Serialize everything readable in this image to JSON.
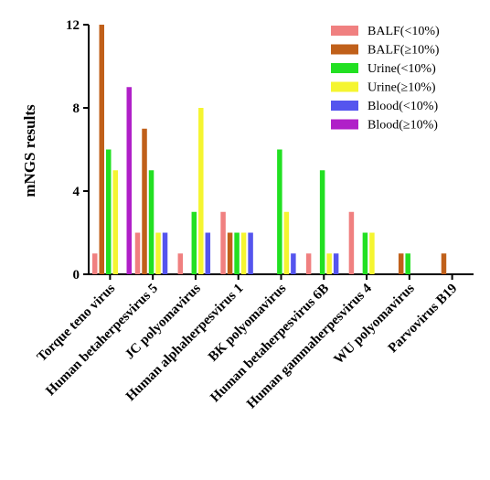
{
  "chart_data": {
    "type": "bar",
    "title": "",
    "xlabel": "",
    "ylabel": "mNGS results",
    "ylim": [
      0,
      12
    ],
    "yticks": [
      0,
      4,
      8,
      12
    ],
    "grid": false,
    "legend_position": "top-right",
    "categories": [
      "Torque teno virus",
      "Human betaherpesvirus 5",
      "JC polyomavirus",
      "Human alphaherpesvirus 1",
      "BK polyomavirus",
      "Human betaherpesvirus 6B",
      "Human gammaherpesvirus 4",
      "WU polyomavirus",
      "Parvovirus B19"
    ],
    "series": [
      {
        "name": "BALF(<10%)",
        "color": "#f08080",
        "values": [
          1,
          2,
          1,
          3,
          0,
          1,
          3,
          0,
          0
        ]
      },
      {
        "name": "BALF(≥10%)",
        "color": "#c0601a",
        "values": [
          12,
          7,
          0,
          2,
          0,
          0,
          0,
          1,
          1
        ]
      },
      {
        "name": "Urine(<10%)",
        "color": "#22e022",
        "values": [
          6,
          5,
          3,
          2,
          6,
          5,
          2,
          1,
          0
        ]
      },
      {
        "name": "Urine(≥10%)",
        "color": "#f5f530",
        "values": [
          5,
          2,
          8,
          2,
          3,
          1,
          2,
          0,
          0
        ]
      },
      {
        "name": "Blood(<10%)",
        "color": "#5555ee",
        "values": [
          0,
          2,
          2,
          2,
          1,
          1,
          0,
          0,
          0
        ]
      },
      {
        "name": "Blood(≥10%)",
        "color": "#b020c8",
        "values": [
          9,
          0,
          0,
          0,
          0,
          0,
          0,
          0,
          0
        ]
      }
    ]
  }
}
